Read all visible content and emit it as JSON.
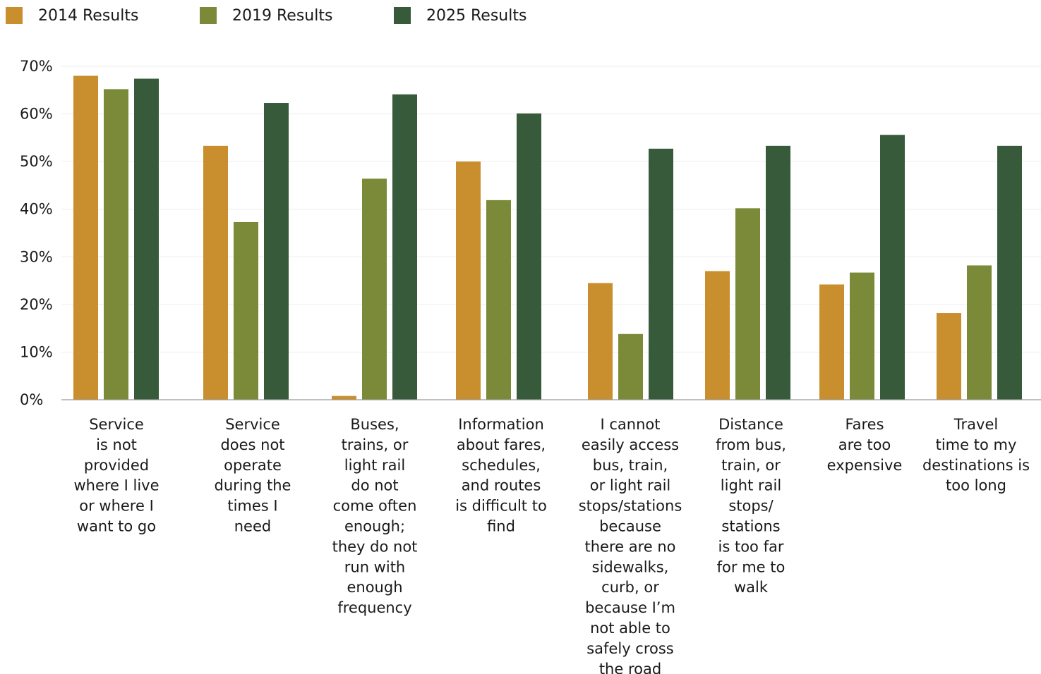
{
  "chart_data": {
    "type": "bar",
    "title": "",
    "xlabel": "",
    "ylabel": "",
    "ylim": [
      0,
      70
    ],
    "yticks": [
      0,
      10,
      20,
      30,
      40,
      50,
      60,
      70
    ],
    "ytick_suffix": "%",
    "grid": true,
    "legend_position": "top-left",
    "categories": [
      [
        "Service",
        "is not",
        "provided",
        "where I live",
        "or where I",
        "want to go"
      ],
      [
        "Service",
        "does not",
        "operate",
        "during the",
        "times I",
        "need"
      ],
      [
        "Buses,",
        "trains, or",
        "light rail",
        "do not",
        "come often",
        "enough;",
        "they do not",
        "run with",
        "enough",
        "frequency"
      ],
      [
        "Information",
        "about fares,",
        "schedules,",
        "and routes",
        "is difficult to",
        "find"
      ],
      [
        "I cannot",
        "easily access",
        "bus, train,",
        "or light rail",
        "stops/stations",
        "because",
        "there are no",
        "sidewalks,",
        "curb, or",
        "because I’m",
        "not able to",
        "safely cross",
        "the road"
      ],
      [
        "Distance",
        "from bus,",
        "train, or",
        "light rail",
        "stops/",
        "stations",
        "is too far",
        "for me to",
        "walk"
      ],
      [
        "Fares",
        "are too",
        "expensive"
      ],
      [
        "Travel",
        "time to my",
        "destinations is",
        "too long"
      ]
    ],
    "series": [
      {
        "name": "2014 Results",
        "color": "#C98F2E",
        "values": [
          68,
          53.3,
          0.8,
          50,
          24.5,
          27,
          24.2,
          18.2
        ]
      },
      {
        "name": "2019 Results",
        "color": "#7A8A38",
        "values": [
          65.2,
          37.3,
          46.4,
          41.9,
          13.8,
          40.2,
          26.7,
          28.2
        ]
      },
      {
        "name": "2025 Results",
        "color": "#375A3A",
        "values": [
          67.4,
          62.3,
          64.1,
          60.1,
          52.7,
          53.3,
          55.6,
          53.3
        ]
      }
    ]
  }
}
